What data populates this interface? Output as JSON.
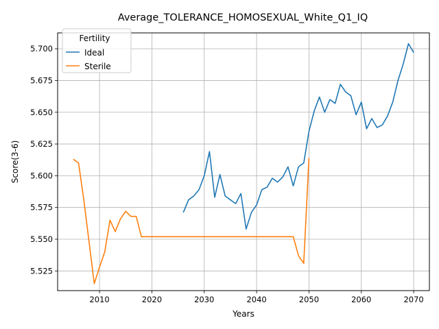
{
  "chart_data": {
    "type": "line",
    "title": "Average_TOLERANCE_HOMOSEXUAL_White_Q1_IQ",
    "xlabel": "Years",
    "ylabel": "Score(3-6)",
    "xlim": [
      2002,
      2073
    ],
    "ylim": [
      5.5095,
      5.7125
    ],
    "xticks": [
      2010,
      2020,
      2030,
      2040,
      2050,
      2060,
      2070
    ],
    "yticks": [
      5.525,
      5.55,
      5.575,
      5.6,
      5.625,
      5.65,
      5.675,
      5.7
    ],
    "ytick_labels": [
      "5.525",
      "5.550",
      "5.575",
      "5.600",
      "5.625",
      "5.650",
      "5.675",
      "5.700"
    ],
    "grid": true,
    "legend": {
      "title": "Fertility",
      "placement": "top-left"
    },
    "series": [
      {
        "name": "Ideal",
        "color": "#1f77b4",
        "x": [
          2026,
          2027,
          2028,
          2029,
          2030,
          2031,
          2032,
          2033,
          2034,
          2035,
          2036,
          2037,
          2038,
          2039,
          2040,
          2041,
          2042,
          2043,
          2044,
          2045,
          2046,
          2047,
          2048,
          2049,
          2050,
          2051,
          2052,
          2053,
          2054,
          2055,
          2056,
          2057,
          2058,
          2059,
          2060,
          2061,
          2062,
          2063,
          2064,
          2065,
          2066,
          2067,
          2068,
          2069,
          2070
        ],
        "y": [
          5.571,
          5.581,
          5.584,
          5.589,
          5.6,
          5.619,
          5.583,
          5.601,
          5.584,
          5.581,
          5.578,
          5.586,
          5.558,
          5.571,
          5.577,
          5.589,
          5.591,
          5.598,
          5.595,
          5.599,
          5.607,
          5.592,
          5.607,
          5.61,
          5.635,
          5.651,
          5.662,
          5.65,
          5.66,
          5.657,
          5.672,
          5.666,
          5.663,
          5.648,
          5.658,
          5.637,
          5.645,
          5.638,
          5.64,
          5.647,
          5.658,
          5.675,
          5.688,
          5.704,
          5.697
        ]
      },
      {
        "name": "Sterile",
        "color": "#ff7f0e",
        "x": [
          2005,
          2006,
          2007,
          2008,
          2009,
          2010,
          2011,
          2012,
          2013,
          2014,
          2015,
          2016,
          2017,
          2018,
          2019,
          2020,
          2025,
          2030,
          2035,
          2040,
          2045,
          2047,
          2048,
          2049,
          2050
        ],
        "y": [
          5.613,
          5.61,
          5.581,
          5.548,
          5.515,
          5.528,
          5.54,
          5.565,
          5.556,
          5.566,
          5.572,
          5.568,
          5.568,
          5.552,
          5.552,
          5.552,
          5.552,
          5.552,
          5.552,
          5.552,
          5.552,
          5.552,
          5.537,
          5.531,
          5.614
        ]
      }
    ]
  }
}
